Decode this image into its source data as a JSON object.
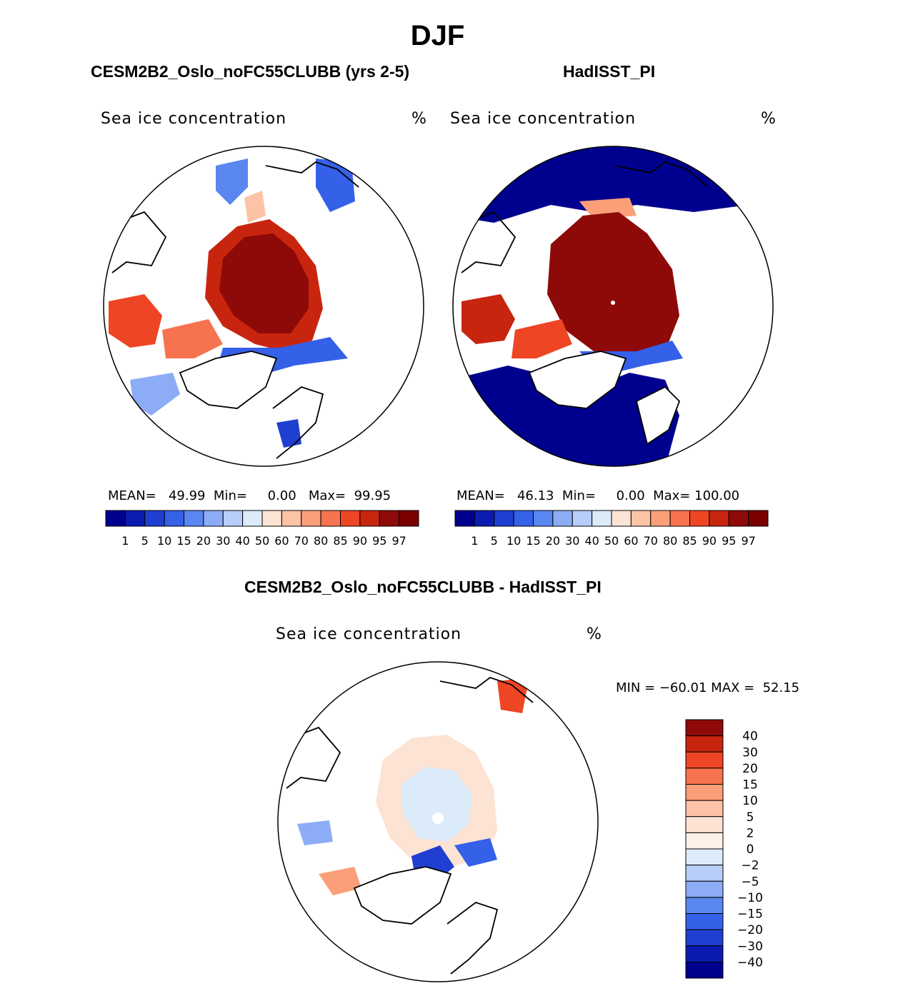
{
  "title": "DJF",
  "panels": [
    {
      "subtitle": "CESM2B2_Oslo_noFC55CLUBB (yrs 2-5)",
      "variable": "Sea ice concentration",
      "units": "%",
      "mean_label": "MEAN=",
      "mean": "49.99",
      "min_label": "Min=",
      "min": "0.00",
      "max_label": "Max=",
      "max": "99.95"
    },
    {
      "subtitle": "HadISST_PI",
      "variable": "Sea ice concentration",
      "units": "%",
      "mean_label": "MEAN=",
      "mean": "46.13",
      "min_label": "Min=",
      "min": "0.00",
      "max_label": "Max=",
      "max": "100.00"
    }
  ],
  "diff": {
    "subtitle": "CESM2B2_Oslo_noFC55CLUBB - HadISST_PI",
    "variable": "Sea ice concentration",
    "units": "%",
    "minmax": "MIN = −60.01 MAX =  52.15"
  },
  "colorbar_main": {
    "levels": [
      "1",
      "5",
      "10",
      "15",
      "20",
      "30",
      "40",
      "50",
      "60",
      "70",
      "80",
      "85",
      "90",
      "95",
      "97"
    ],
    "colors": [
      "#00008f",
      "#0a1cb0",
      "#1f3fd0",
      "#3560e8",
      "#5a86f0",
      "#8cacf5",
      "#b8cef8",
      "#dcebf9",
      "#fde3d3",
      "#fcc3a6",
      "#fb9f79",
      "#f7734f",
      "#ee4524",
      "#c8250f",
      "#8e0a08",
      "#7a0000"
    ]
  },
  "colorbar_diff": {
    "levels": [
      "40",
      "30",
      "20",
      "15",
      "10",
      "5",
      "2",
      "0",
      "−2",
      "−5",
      "−10",
      "−15",
      "−20",
      "−30",
      "−40"
    ],
    "colors": [
      "#8e0a08",
      "#c8250f",
      "#ee4524",
      "#f7734f",
      "#fb9f79",
      "#fcc3a6",
      "#fde3d3",
      "#fdf0e6",
      "#dcebf9",
      "#b8cef8",
      "#8cacf5",
      "#5a86f0",
      "#3560e8",
      "#1f3fd0",
      "#0a1cb0",
      "#00008f"
    ]
  },
  "chart_data": [
    {
      "type": "heatmap",
      "title": "CESM2B2_Oslo_noFC55CLUBB (yrs 2-5)",
      "variable": "Sea ice concentration",
      "units": "%",
      "projection": "north polar stereographic",
      "mean": 49.99,
      "min": 0.0,
      "max": 99.95
    },
    {
      "type": "heatmap",
      "title": "HadISST_PI",
      "variable": "Sea ice concentration",
      "units": "%",
      "projection": "north polar stereographic",
      "mean": 46.13,
      "min": 0.0,
      "max": 100.0
    },
    {
      "type": "heatmap",
      "title": "CESM2B2_Oslo_noFC55CLUBB - HadISST_PI",
      "variable": "Sea ice concentration",
      "units": "%",
      "projection": "north polar stereographic",
      "min": -60.01,
      "max": 52.15
    }
  ]
}
